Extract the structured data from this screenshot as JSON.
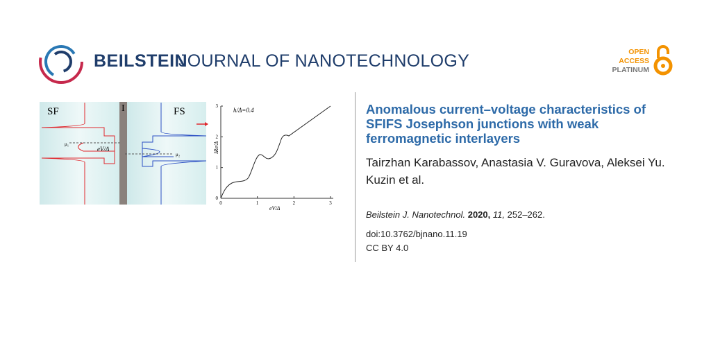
{
  "header": {
    "journal_bold": "BEILSTEIN",
    "journal_rest": "JOURNAL OF NANOTECHNOLOGY",
    "badge": [
      "OPEN",
      "ACCESS",
      "PLATINUM"
    ]
  },
  "figure": {
    "panel_left": "SF",
    "barrier": "I",
    "panel_right": "FS",
    "mu1": "μ₁",
    "mu2": "μ₂",
    "voltage_label": "eV/Δ",
    "plot_parameter": "h/Δ=0.4",
    "y_axis_label": "IRe/Δ",
    "x_axis_label": "eV/Δ",
    "xticks": [
      0,
      1,
      2,
      3
    ],
    "yticks": [
      0,
      1,
      2,
      3
    ]
  },
  "article": {
    "title": "Anomalous current–voltage characteristics of SFIFS Josephson junctions with weak ferromagnetic interlayers",
    "authors": "Tairzhan Karabassov, Anastasia V. Guravova, Aleksei Yu. Kuzin et al.",
    "citation": {
      "journal": "Beilstein J. Nanotechnol.",
      "year": "2020,",
      "volume": "11,",
      "pages": "252–262."
    },
    "doi": "doi:10.3762/bjnano.11.19",
    "license": "CC BY 4.0"
  }
}
